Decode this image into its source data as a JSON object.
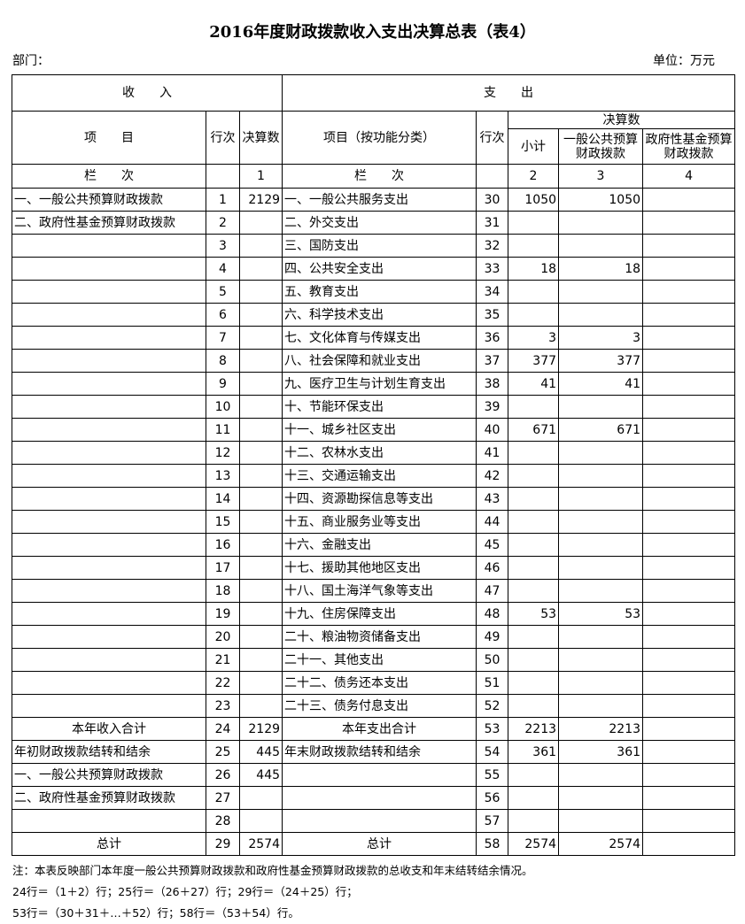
{
  "header": {
    "title": "2016年度财政拨款收入支出决算总表（表4）",
    "department": "部门：",
    "unit": "单位：万元"
  },
  "table": {
    "income": "收　　入",
    "expense": "支　　出",
    "col_item": "项　　目",
    "col_line": "行次",
    "col_amount": "决算数",
    "col_func_item": "项目（按功能分类）",
    "col_line2": "行次",
    "col_amount2": "决算数",
    "col_subtotal": "小计",
    "col_general": "一般公共预算财政拨款",
    "col_fund": "政府性基金预算财政拨款",
    "lanci": "栏　　次",
    "lanci_1": "1",
    "lanci2": "栏　　次",
    "lanci_2": "2",
    "lanci_3": "3",
    "lanci_4": "4",
    "rows": [
      [
        "一、一般公共预算财政拨款",
        1,
        2129,
        "一、一般公共服务支出",
        30,
        1050,
        1050,
        null
      ],
      [
        "二、政府性基金预算财政拨款",
        2,
        null,
        "二、外交支出",
        31,
        null,
        null,
        null
      ],
      [
        null,
        3,
        null,
        "三、国防支出",
        32,
        null,
        null,
        null
      ],
      [
        null,
        4,
        null,
        "四、公共安全支出",
        33,
        18,
        18,
        null
      ],
      [
        null,
        5,
        null,
        "五、教育支出",
        34,
        null,
        null,
        null
      ],
      [
        null,
        6,
        null,
        "六、科学技术支出",
        35,
        null,
        null,
        null
      ],
      [
        null,
        7,
        null,
        "七、文化体育与传媒支出",
        36,
        3,
        3,
        null
      ],
      [
        null,
        8,
        null,
        "八、社会保障和就业支出",
        37,
        377,
        377,
        null
      ],
      [
        null,
        9,
        null,
        "九、医疗卫生与计划生育支出",
        38,
        41,
        41,
        null
      ],
      [
        null,
        10,
        null,
        "十、节能环保支出",
        39,
        null,
        null,
        null
      ],
      [
        null,
        11,
        null,
        "十一、城乡社区支出",
        40,
        671,
        671,
        null
      ],
      [
        null,
        12,
        null,
        "十二、农林水支出",
        41,
        null,
        null,
        null
      ],
      [
        null,
        13,
        null,
        "十三、交通运输支出",
        42,
        null,
        null,
        null
      ],
      [
        null,
        14,
        null,
        "十四、资源勘探信息等支出",
        43,
        null,
        null,
        null
      ],
      [
        null,
        15,
        null,
        "十五、商业服务业等支出",
        44,
        null,
        null,
        null
      ],
      [
        null,
        16,
        null,
        "十六、金融支出",
        45,
        null,
        null,
        null
      ],
      [
        null,
        17,
        null,
        "十七、援助其他地区支出",
        46,
        null,
        null,
        null
      ],
      [
        null,
        18,
        null,
        "十八、国土海洋气象等支出",
        47,
        null,
        null,
        null
      ],
      [
        null,
        19,
        null,
        "十九、住房保障支出",
        48,
        53,
        53,
        null
      ],
      [
        null,
        20,
        null,
        "二十、粮油物资储备支出",
        49,
        null,
        null,
        null
      ],
      [
        null,
        21,
        null,
        "二十一、其他支出",
        50,
        null,
        null,
        null
      ],
      [
        null,
        22,
        null,
        "二十二、债务还本支出",
        51,
        null,
        null,
        null
      ],
      [
        null,
        23,
        null,
        "二十三、债务付息支出",
        52,
        null,
        null,
        null
      ],
      [
        "本年收入合计",
        24,
        2129,
        "本年支出合计",
        53,
        2213,
        2213,
        null
      ],
      [
        "年初财政拨款结转和结余",
        25,
        445,
        "年末财政拨款结转和结余",
        54,
        361,
        361,
        null
      ],
      [
        "一、一般公共预算财政拨款",
        26,
        445,
        null,
        55,
        null,
        null,
        null
      ],
      [
        "二、政府性基金预算财政拨款",
        27,
        null,
        null,
        56,
        null,
        null,
        null
      ],
      [
        null,
        28,
        null,
        null,
        57,
        null,
        null,
        null
      ],
      [
        "总计",
        29,
        2574,
        "总计",
        58,
        2574,
        2574,
        null
      ]
    ]
  },
  "notes": [
    "注：本表反映部门本年度一般公共预算财政拨款和政府性基金预算财政拨款的总收支和年末结转结余情况。",
    "24行＝（1＋2）行；25行＝（26＋27）行；29行＝（24＋25）行；",
    "53行＝（30＋31＋…＋52）行；58行＝（53＋54）行。"
  ]
}
